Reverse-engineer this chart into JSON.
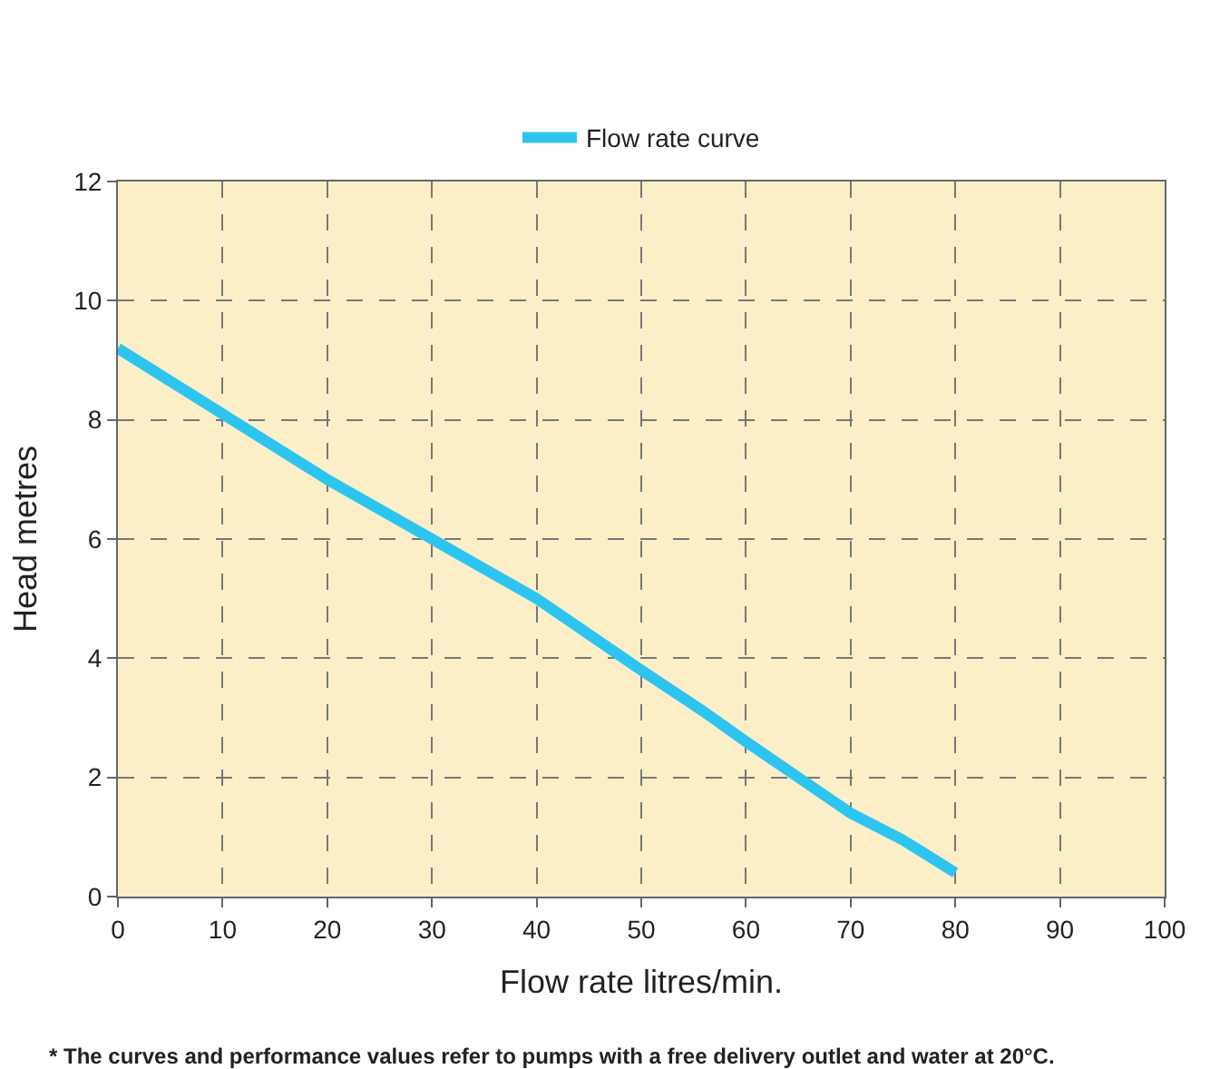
{
  "chart_data": {
    "type": "line",
    "xlabel": "Flow rate litres/min.",
    "ylabel": "Head metres",
    "series": [
      {
        "name": "Flow rate curve",
        "color": "#2ec4f0",
        "x": [
          0,
          10,
          20,
          30,
          40,
          50,
          56,
          60,
          65,
          70,
          75,
          80
        ],
        "values": [
          9.2,
          8.1,
          7.0,
          6.0,
          5.0,
          3.8,
          3.1,
          2.6,
          2.0,
          1.4,
          0.95,
          0.4
        ]
      }
    ],
    "xlim": [
      0,
      100
    ],
    "xticks": [
      0,
      10,
      20,
      30,
      40,
      50,
      60,
      70,
      80,
      90,
      100
    ],
    "ylim": [
      0,
      12
    ],
    "yticks": [
      0,
      2,
      4,
      6,
      8,
      10,
      12
    ],
    "grid": true,
    "legend": "top",
    "marker": "none",
    "line_style": "solid",
    "annotations": [
      "* The curves and performance values refer to pumps with a free delivery outlet and water at 20°C."
    ]
  }
}
